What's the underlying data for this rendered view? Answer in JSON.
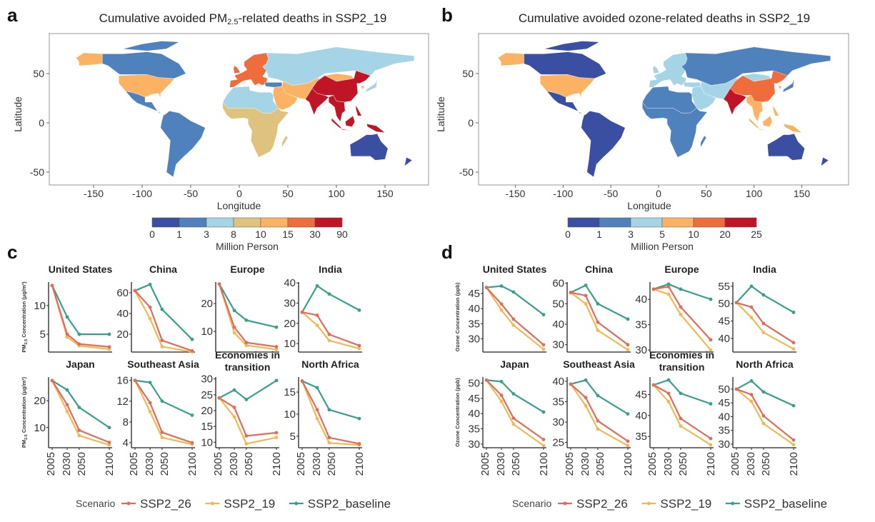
{
  "panels": {
    "a": "a",
    "b": "b",
    "c": "c",
    "d": "d"
  },
  "maps": [
    {
      "id": "a",
      "title": "Cumulative avoided PM",
      "title_sub": "2.5",
      "title_rest": "-related deaths in SSP2_19",
      "xlabel": "Longitude",
      "ylabel": "Latitude",
      "xticks": [
        -150,
        -100,
        -50,
        0,
        50,
        100,
        150
      ],
      "yticks": [
        50,
        0,
        -50
      ],
      "colorbar": {
        "label": "Million Person",
        "breaks": [
          "0",
          "1",
          "3",
          "8",
          "10",
          "15",
          "30",
          "90"
        ],
        "colors": [
          "#3a4fa1",
          "#4f81bd",
          "#a6d4e7",
          "#dfc27d",
          "#fbb263",
          "#ef6c3c",
          "#bf1526"
        ]
      },
      "regions": {
        "alaska": 4,
        "canada": 1,
        "arctic": 1,
        "usa": 4,
        "latam": 1,
        "europe": 5,
        "uk": 5,
        "eit": 2,
        "turkey": 1,
        "north_africa": 2,
        "middle_east": 4,
        "central_asia": 4,
        "india": 6,
        "china": 6,
        "sea": 6,
        "indonesia": 6,
        "japan": 2,
        "korea": 4,
        "africa": 3,
        "madagascar": 3,
        "australia": 0,
        "nz": 0
      }
    },
    {
      "id": "b",
      "title": "Cumulative avoided ozone-related deaths in SSP2_19",
      "title_sub": "",
      "title_rest": "",
      "xlabel": "Longitude",
      "ylabel": "Latitude",
      "xticks": [
        -150,
        -100,
        -50,
        0,
        50,
        100,
        150
      ],
      "yticks": [
        50,
        0,
        -50
      ],
      "colorbar": {
        "label": "Million Person",
        "breaks": [
          "0",
          "1",
          "3",
          "5",
          "10",
          "20",
          "25"
        ],
        "colors": [
          "#3a4fa1",
          "#4f81bd",
          "#a6d4e7",
          "#fbb263",
          "#ef6c3c",
          "#bf1526"
        ]
      },
      "regions": {
        "alaska": 3,
        "canada": 0,
        "arctic": 0,
        "usa": 3,
        "latam": 0,
        "europe": 2,
        "uk": 2,
        "eit": 1,
        "turkey": 2,
        "north_africa": 1,
        "middle_east": 2,
        "central_asia": 2,
        "india": 5,
        "china": 4,
        "sea": 3,
        "indonesia": 3,
        "japan": 1,
        "korea": 3,
        "africa": 1,
        "madagascar": 1,
        "australia": 0,
        "nz": 0
      }
    }
  ],
  "legend": {
    "title": "Scenario",
    "series": [
      {
        "name": "SSP2_26",
        "color": "#e06c5b"
      },
      {
        "name": "SSP2_19",
        "color": "#f0b954"
      },
      {
        "name": "SSP2_baseline",
        "color": "#3a9e8f"
      }
    ]
  },
  "chart_data": [
    {
      "type": "line",
      "panel": "c",
      "ylabel": "PM",
      "ylabel_sub": "2.5",
      "ylabel_rest": " Concentration (μg/m³)",
      "x": [
        2005,
        2030,
        2050,
        2100
      ],
      "xticks": [
        2005,
        2030,
        2050,
        2100
      ],
      "facets": [
        {
          "title": "United States",
          "ylim": [
            1.9,
            14.1
          ],
          "yticks": [
            5,
            10
          ],
          "series": {
            "SSP2_26": [
              13.5,
              5,
              3.3,
              2.8
            ],
            "SSP2_19": [
              13.5,
              4.5,
              3,
              2.4
            ],
            "SSP2_baseline": [
              13.5,
              8,
              5,
              5
            ]
          }
        },
        {
          "title": "China",
          "ylim": [
            2.8,
            70.3
          ],
          "yticks": [
            20,
            40,
            60
          ],
          "series": {
            "SSP2_26": [
              62,
              46,
              14,
              4
            ],
            "SSP2_19": [
              62,
              35,
              8,
              3
            ],
            "SSP2_baseline": [
              62,
              68,
              44,
              15
            ]
          }
        },
        {
          "title": "Europe",
          "ylim": [
            2.6,
            27.7
          ],
          "yticks": [
            10,
            20
          ],
          "series": {
            "SSP2_26": [
              27,
              11.5,
              6,
              4.5
            ],
            "SSP2_19": [
              27,
              9.5,
              5,
              3.5
            ],
            "SSP2_baseline": [
              27,
              17.5,
              14,
              11.5
            ]
          }
        },
        {
          "title": "India",
          "ylim": [
            5.8,
            40.4
          ],
          "yticks": [
            10,
            20,
            30,
            40
          ],
          "series": {
            "SSP2_26": [
              25.5,
              24,
              14.5,
              9
            ],
            "SSP2_19": [
              25.5,
              19,
              11.5,
              7.5
            ],
            "SSP2_baseline": [
              25.5,
              38.5,
              34.5,
              26.5
            ]
          }
        },
        {
          "title": "Japan",
          "ylim": [
            2.5,
            28.8
          ],
          "yticks": [
            10,
            20
          ],
          "series": {
            "SSP2_26": [
              27.5,
              18.5,
              9,
              4.5
            ],
            "SSP2_19": [
              27.5,
              16,
              7,
              3.5
            ],
            "SSP2_baseline": [
              27.5,
              24,
              17.5,
              10
            ]
          }
        },
        {
          "title": "Southeast Asia",
          "ylim": [
            3.04,
            16.65
          ],
          "yticks": [
            4,
            8,
            12,
            16
          ],
          "series": {
            "SSP2_26": [
              16,
              11.7,
              6,
              4
            ],
            "SSP2_19": [
              16,
              10,
              5,
              3.7
            ],
            "SSP2_baseline": [
              16,
              15.6,
              12,
              9.3
            ]
          }
        },
        {
          "title": "Economies in",
          "title2": "transition",
          "ylim": [
            8.26,
            30.6
          ],
          "yticks": [
            10,
            15,
            20,
            25,
            30
          ],
          "series": {
            "SSP2_26": [
              24,
              21,
              12,
              13
            ],
            "SSP2_19": [
              24,
              18,
              9.5,
              11.5
            ],
            "SSP2_baseline": [
              24,
              26.5,
              23.5,
              29.5
            ]
          }
        },
        {
          "title": "North Africa",
          "ylim": [
            2.4,
            18.4
          ],
          "yticks": [
            5,
            10,
            15
          ],
          "series": {
            "SSP2_26": [
              17.5,
              11,
              4.7,
              3.3
            ],
            "SSP2_19": [
              17.5,
              9,
              3.5,
              3
            ],
            "SSP2_baseline": [
              17.5,
              16,
              11,
              9
            ]
          }
        }
      ]
    },
    {
      "type": "line",
      "panel": "d",
      "ylabel": "Ozone Concentration (ppb)",
      "ylabel_sub": "",
      "ylabel_rest": "",
      "x": [
        2005,
        2030,
        2050,
        2100
      ],
      "xticks": [
        2005,
        2030,
        2050,
        2100
      ],
      "facets": [
        {
          "title": "United States",
          "ylim": [
            25.6,
            48.8
          ],
          "yticks": [
            30,
            35,
            40,
            45
          ],
          "series": {
            "SSP2_26": [
              47,
              41.5,
              36.5,
              28
            ],
            "SSP2_19": [
              47,
              39.5,
              34.5,
              26.5
            ],
            "SSP2_baseline": [
              47,
              47.5,
              45.5,
              38
            ]
          }
        },
        {
          "title": "China",
          "ylim": [
            26.4,
            60.6
          ],
          "yticks": [
            30,
            40,
            50,
            60
          ],
          "series": {
            "SSP2_26": [
              55.5,
              54,
              41,
              30
            ],
            "SSP2_19": [
              55.5,
              50,
              37,
              27.5
            ],
            "SSP2_baseline": [
              55.5,
              59,
              50,
              42.5
            ]
          }
        },
        {
          "title": "Europe",
          "ylim": [
            29.6,
            43.4
          ],
          "yticks": [
            30,
            35,
            40
          ],
          "series": {
            "SSP2_26": [
              42,
              42.5,
              38.5,
              32
            ],
            "SSP2_19": [
              42,
              41,
              37,
              30
            ],
            "SSP2_baseline": [
              42,
              43,
              42,
              40
            ]
          }
        },
        {
          "title": "India",
          "ylim": [
            36.1,
            56.2
          ],
          "yticks": [
            40,
            45,
            50,
            55
          ],
          "series": {
            "SSP2_26": [
              50.3,
              49,
              44.3,
              38.8
            ],
            "SSP2_19": [
              50.3,
              46,
              41.7,
              37
            ],
            "SSP2_baseline": [
              50.3,
              55,
              52.5,
              47.5
            ]
          }
        },
        {
          "title": "Japan",
          "ylim": [
            28.8,
            52
          ],
          "yticks": [
            30,
            35,
            40,
            45,
            50
          ],
          "series": {
            "SSP2_26": [
              51,
              46,
              38.5,
              31.5
            ],
            "SSP2_19": [
              51,
              44,
              36.5,
              29.5
            ],
            "SSP2_baseline": [
              51,
              50.5,
              46.5,
              40.5
            ]
          }
        },
        {
          "title": "Southeast Asia",
          "ylim": [
            23.7,
            41.05
          ],
          "yticks": [
            25,
            30,
            35,
            40
          ],
          "series": {
            "SSP2_26": [
              39.3,
              36,
              30.3,
              25.3
            ],
            "SSP2_19": [
              39.3,
              34,
              28.3,
              24.2
            ],
            "SSP2_baseline": [
              39.3,
              40.3,
              36.5,
              32
            ]
          }
        },
        {
          "title": "Economies in",
          "title2": "transition",
          "ylim": [
            32.3,
            49.2
          ],
          "yticks": [
            35,
            40,
            45
          ],
          "series": {
            "SSP2_26": [
              47.3,
              45.3,
              39.3,
              34.5
            ],
            "SSP2_19": [
              47.3,
              43.3,
              37.5,
              33
            ],
            "SSP2_baseline": [
              47.3,
              48.5,
              45.3,
              42.8
            ]
          }
        },
        {
          "title": "North Africa",
          "ylim": [
            28.7,
            54.4
          ],
          "yticks": [
            30,
            35,
            40,
            45,
            50
          ],
          "series": {
            "SSP2_26": [
              50,
              48,
              40.3,
              31.5
            ],
            "SSP2_19": [
              50,
              45.5,
              37.5,
              29.8
            ],
            "SSP2_baseline": [
              50,
              53,
              49,
              44
            ]
          }
        }
      ]
    }
  ]
}
